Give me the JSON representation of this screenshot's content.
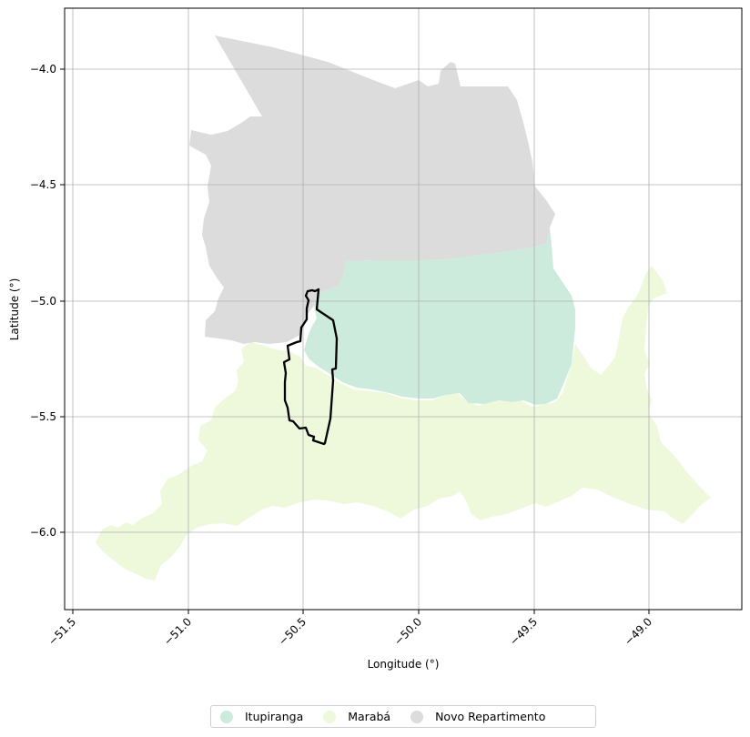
{
  "map": {
    "x_axis_label": "Longitude (°)",
    "y_axis_label": "Latitude (°)",
    "x_ticks": [
      "−51.5",
      "−51.0",
      "−50.5",
      "−50.0",
      "−49.5",
      "−49.0"
    ],
    "y_ticks": [
      "−4.0",
      "−4.5",
      "−5.0",
      "−5.5",
      "−6.0"
    ],
    "grid": true,
    "legend_position": "bottom-center",
    "regions": [
      {
        "name": "Itupiranga",
        "color": "#cdebdc"
      },
      {
        "name": "Marabá",
        "color": "#eef8db"
      },
      {
        "name": "Novo Repartimento",
        "color": "#dcdcdc"
      }
    ],
    "highlight_outline_color": "#000000"
  }
}
